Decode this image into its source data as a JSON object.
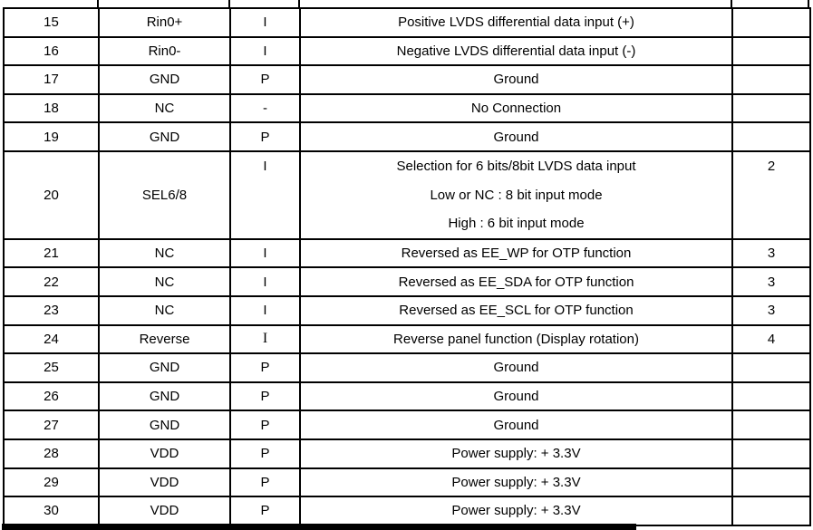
{
  "colors": {
    "line": "#000000",
    "text": "#000000",
    "background": "#ffffff"
  },
  "pin_table": {
    "rows": [
      {
        "pin": "15",
        "symbol": "Rin0+",
        "io": "I",
        "description": [
          "Positive LVDS differential data input (+)"
        ],
        "note": ""
      },
      {
        "pin": "16",
        "symbol": "Rin0-",
        "io": "I",
        "description": [
          "Negative LVDS differential data input (-)"
        ],
        "note": ""
      },
      {
        "pin": "17",
        "symbol": "GND",
        "io": "P",
        "description": [
          "Ground"
        ],
        "note": ""
      },
      {
        "pin": "18",
        "symbol": "NC",
        "io": "-",
        "description": [
          "No Connection"
        ],
        "note": ""
      },
      {
        "pin": "19",
        "symbol": "GND",
        "io": "P",
        "description": [
          "Ground"
        ],
        "note": ""
      },
      {
        "pin": "20",
        "symbol": "SEL6/8",
        "io": "I",
        "description": [
          "Selection for 6 bits/8bit LVDS data input",
          "Low or NC : 8 bit input mode",
          "High : 6 bit input mode"
        ],
        "note": "2"
      },
      {
        "pin": "21",
        "symbol": "NC",
        "io": "I",
        "description": [
          "Reversed as EE_WP for OTP function"
        ],
        "note": "3"
      },
      {
        "pin": "22",
        "symbol": "NC",
        "io": "I",
        "description": [
          "Reversed as EE_SDA for OTP function"
        ],
        "note": "3"
      },
      {
        "pin": "23",
        "symbol": "NC",
        "io": "I",
        "description": [
          "Reversed as EE_SCL for OTP function"
        ],
        "note": "3"
      },
      {
        "pin": "24",
        "symbol": "Reverse",
        "io": "I",
        "io_font": "serif",
        "description": [
          "Reverse panel function (Display rotation)"
        ],
        "note": "4"
      },
      {
        "pin": "25",
        "symbol": "GND",
        "io": "P",
        "description": [
          "Ground"
        ],
        "note": ""
      },
      {
        "pin": "26",
        "symbol": "GND",
        "io": "P",
        "description": [
          "Ground"
        ],
        "note": ""
      },
      {
        "pin": "27",
        "symbol": "GND",
        "io": "P",
        "description": [
          "Ground"
        ],
        "note": ""
      },
      {
        "pin": "28",
        "symbol": "VDD",
        "io": "P",
        "description": [
          "Power supply: + 3.3V"
        ],
        "note": ""
      },
      {
        "pin": "29",
        "symbol": "VDD",
        "io": "P",
        "description": [
          "Power supply: + 3.3V"
        ],
        "note": ""
      },
      {
        "pin": "30",
        "symbol": "VDD",
        "io": "P",
        "description": [
          "Power supply: + 3.3V"
        ],
        "note": ""
      }
    ]
  }
}
